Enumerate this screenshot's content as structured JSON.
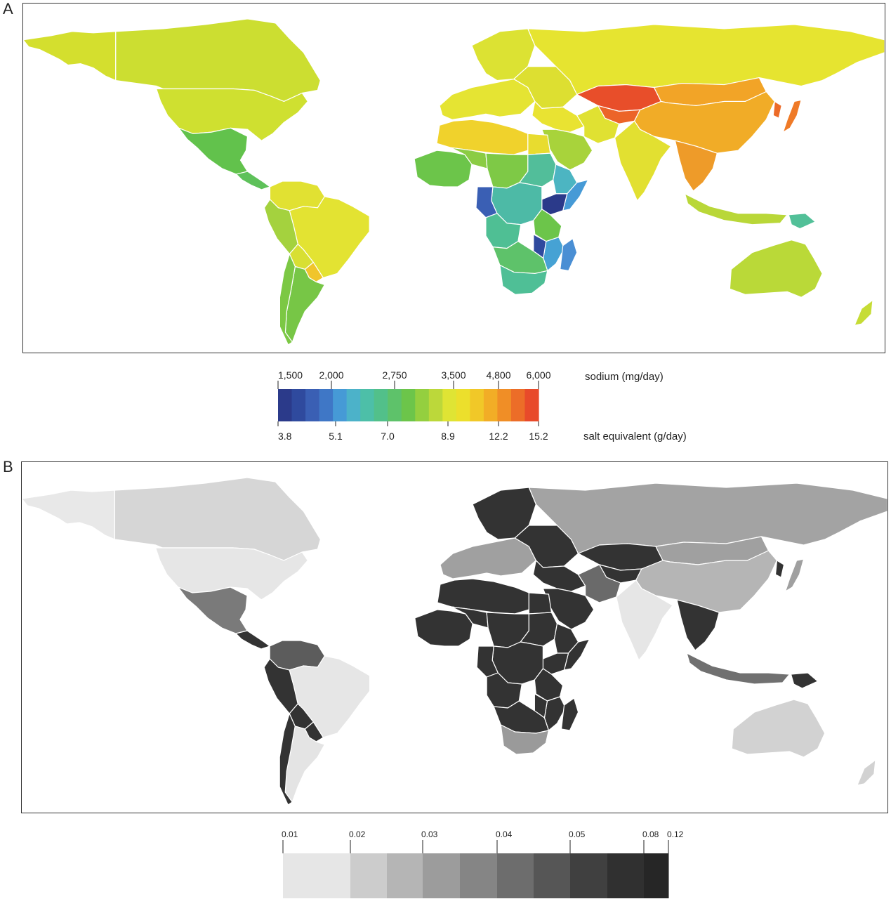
{
  "panels": [
    {
      "letter": "A",
      "legend": {
        "top_ticks": [
          "1,500",
          "2,000",
          "2,750",
          "3,500",
          "4,800",
          "6,000"
        ],
        "top_title": "sodium (mg/day)",
        "bottom_ticks": [
          "3.8",
          "5.1",
          "7.0",
          "8.9",
          "12.2",
          "15.2"
        ],
        "bottom_title": "salt equivalent (g/day)",
        "colors": [
          "#2b3a8a",
          "#2f4a9e",
          "#3a5fb4",
          "#3f77c6",
          "#469ad6",
          "#4cb2c9",
          "#4dbfa8",
          "#52c08a",
          "#5ec26a",
          "#6cc54a",
          "#94cf3f",
          "#bcd83a",
          "#dfe434",
          "#ecdf2c",
          "#f1c828",
          "#f2ad26",
          "#f08e26",
          "#ec6d28",
          "#e84a2a"
        ]
      }
    },
    {
      "letter": "B",
      "legend": {
        "ticks": [
          "0.01",
          "0.02",
          "0.03",
          "0.04",
          "0.05",
          "0.08",
          "0.12"
        ],
        "colors": [
          "#e6e6e6",
          "#cccccc",
          "#b5b5b5",
          "#9c9c9c",
          "#858585",
          "#6d6d6d",
          "#565656",
          "#404040",
          "#303030",
          "#262626"
        ]
      }
    }
  ],
  "map_a_colors": {
    "alaska": "#d4df2e",
    "canada": "#ccde31",
    "greenland": "#ffffff",
    "usa": "#cfe030",
    "mexico": "#62c24c",
    "central_america": "#5ec15a",
    "colombia_venezuela": "#e1e132",
    "peru": "#a4d23e",
    "brazil": "#e3e332",
    "bolivia": "#d8df33",
    "paraguay": "#f0c52c",
    "argentina": "#77c646",
    "chile": "#7cc844",
    "europe_north": "#dce233",
    "europe_west": "#e5e433",
    "europe_east": "#dddf31",
    "russia": "#e6e430",
    "kazakhstan": "#e84e2a",
    "central_asia": "#ec6428",
    "mongolia_china": "#f2a427",
    "china_east": "#f1ac27",
    "japan": "#ef7a27",
    "korea": "#ec6b28",
    "middle_east": "#e9e332",
    "arabia": "#a8d33b",
    "iran": "#e0e132",
    "india": "#e2e031",
    "se_asia": "#ee9b29",
    "indonesia": "#b9d738",
    "png": "#52c098",
    "australia": "#bad938",
    "nz": "#c6dc35",
    "north_africa": "#f0d22c",
    "egypt": "#e8dc2f",
    "west_africa": "#6cc54a",
    "west_africa_2": "#8bcc44",
    "sahel": "#7ec946",
    "sudan": "#52be9a",
    "ethiopia": "#4cb5c2",
    "somalia": "#469ad6",
    "kenya": "#2b3a8a",
    "central_africa": "#4dbaa6",
    "gabon_congo": "#3a5fb4",
    "angola": "#4fbf94",
    "tanzania": "#6cc54a",
    "mozambique": "#46a2d4",
    "malawi": "#2f4a9e",
    "southern_africa": "#5ec26a",
    "south_africa": "#4fbf96",
    "madagascar": "#4a8fd4"
  },
  "map_b_colors": {
    "alaska": "#e8e8e8",
    "canada": "#d6d6d6",
    "usa": "#e6e6e6",
    "mexico": "#7a7a7a",
    "central_america": "#333333",
    "colombia": "#5c5c5c",
    "venezuela": "#333333",
    "brazil": "#e6e6e6",
    "peru_bolivia": "#333333",
    "argentina": "#e4e4e4",
    "chile": "#333333",
    "europe_north": "#333333",
    "europe_west": "#a0a0a0",
    "europe_east": "#333333",
    "russia": "#a3a3a3",
    "central_asia": "#333333",
    "middle_east": "#333333",
    "iran": "#6a6a6a",
    "china": "#b5b5b5",
    "mongolia": "#a0a0a0",
    "india": "#e6e6e6",
    "se_asia": "#333333",
    "indonesia": "#707070",
    "png": "#333333",
    "australia": "#d2d2d2",
    "africa": "#333333",
    "south_africa": "#9a9a9a",
    "madagascar": "#333333"
  }
}
